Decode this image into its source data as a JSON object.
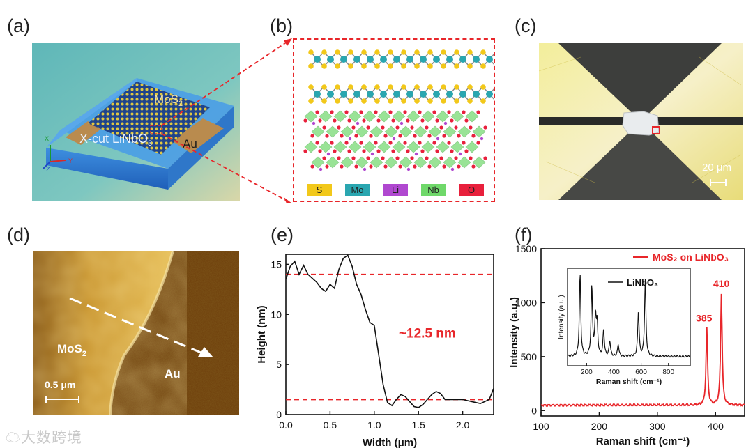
{
  "panels": {
    "a": {
      "label": "(a)",
      "mos2_label": "MoS",
      "mos2_sub": "2",
      "substrate_label": "X-cut LiNbO",
      "substrate_sub": "3",
      "au_label": "Au",
      "axis_x": "X",
      "axis_y": "Y",
      "axis_z": "Z"
    },
    "b": {
      "label": "(b)",
      "legend": [
        {
          "symbol": "S",
          "color": "#f2c81a"
        },
        {
          "symbol": "Mo",
          "color": "#2aa6b0"
        },
        {
          "symbol": "Li",
          "color": "#b048d0"
        },
        {
          "symbol": "Nb",
          "color": "#6fd86a"
        },
        {
          "symbol": "O",
          "color": "#e8203c"
        }
      ]
    },
    "c": {
      "label": "(c)",
      "scalebar": "20 μm"
    },
    "d": {
      "label": "(d)",
      "mos2_label": "MoS",
      "mos2_sub": "2",
      "au_label": "Au",
      "scalebar": "0.5 μm"
    },
    "e": {
      "label": "(e)",
      "annotation": "~12.5 nm"
    },
    "f": {
      "label": "(f)"
    }
  },
  "watermark": "大数跨境",
  "chart_data": [
    {
      "panel": "e",
      "type": "line",
      "xlabel": "Width (μm)",
      "ylabel": "Height (nm)",
      "xlim": [
        0,
        2.35
      ],
      "ylim": [
        0,
        16
      ],
      "xticks": [
        "0.0",
        "0.5",
        "1.0",
        "1.5",
        "2.0"
      ],
      "yticks": [
        "0",
        "5",
        "10",
        "15"
      ],
      "reference_lines": [
        14.0,
        1.5
      ],
      "x": [
        0,
        0.05,
        0.1,
        0.15,
        0.2,
        0.25,
        0.3,
        0.35,
        0.4,
        0.45,
        0.5,
        0.55,
        0.6,
        0.65,
        0.7,
        0.75,
        0.8,
        0.85,
        0.9,
        0.95,
        1.0,
        1.05,
        1.1,
        1.15,
        1.2,
        1.25,
        1.3,
        1.35,
        1.4,
        1.45,
        1.5,
        1.55,
        1.6,
        1.65,
        1.7,
        1.75,
        1.8,
        1.9,
        2.0,
        2.1,
        2.2,
        2.3,
        2.35
      ],
      "y": [
        13.5,
        14.8,
        15.3,
        14.0,
        14.9,
        14.0,
        13.6,
        13.2,
        12.6,
        12.3,
        13.0,
        12.6,
        14.5,
        15.6,
        15.9,
        14.8,
        13.0,
        12.0,
        10.5,
        9.2,
        8.9,
        6.0,
        3.0,
        1.2,
        0.9,
        1.5,
        2.0,
        1.8,
        1.3,
        0.8,
        0.7,
        1.0,
        1.5,
        2.0,
        2.3,
        2.1,
        1.5,
        1.5,
        1.5,
        1.3,
        1.1,
        1.5,
        2.6
      ]
    },
    {
      "panel": "f",
      "type": "line",
      "xlabel": "Raman shift (cm⁻¹)",
      "ylabel": "Intensity (a.u.)",
      "xlim": [
        100,
        450
      ],
      "ylim": [
        -50,
        1500
      ],
      "xticks": [
        "100",
        "200",
        "300",
        "400"
      ],
      "yticks": [
        "0",
        "500",
        "1000",
        "1500"
      ],
      "series": [
        {
          "name": "MoS₂ on LiNbO₃",
          "color": "#e8262a"
        }
      ],
      "peaks": [
        {
          "x": 385,
          "y": 760,
          "label": "385"
        },
        {
          "x": 410,
          "y": 1080,
          "label": "410"
        }
      ],
      "baseline": 50,
      "inset": {
        "type": "line",
        "xlabel": "Raman shift (cm⁻¹)",
        "ylabel": "Intensity (a.u.)",
        "xlim": [
          60,
          960
        ],
        "xticks": [
          "200",
          "400",
          "600",
          "800"
        ],
        "series": [
          {
            "name": "LiNbO₃",
            "color": "#111111"
          }
        ],
        "peaks": [
          {
            "x": 152,
            "h": 0.95
          },
          {
            "x": 238,
            "h": 0.8
          },
          {
            "x": 265,
            "h": 0.45
          },
          {
            "x": 277,
            "h": 0.35
          },
          {
            "x": 325,
            "h": 0.3
          },
          {
            "x": 370,
            "h": 0.18
          },
          {
            "x": 432,
            "h": 0.14
          },
          {
            "x": 580,
            "h": 0.52
          },
          {
            "x": 630,
            "h": 0.88
          }
        ]
      }
    }
  ]
}
